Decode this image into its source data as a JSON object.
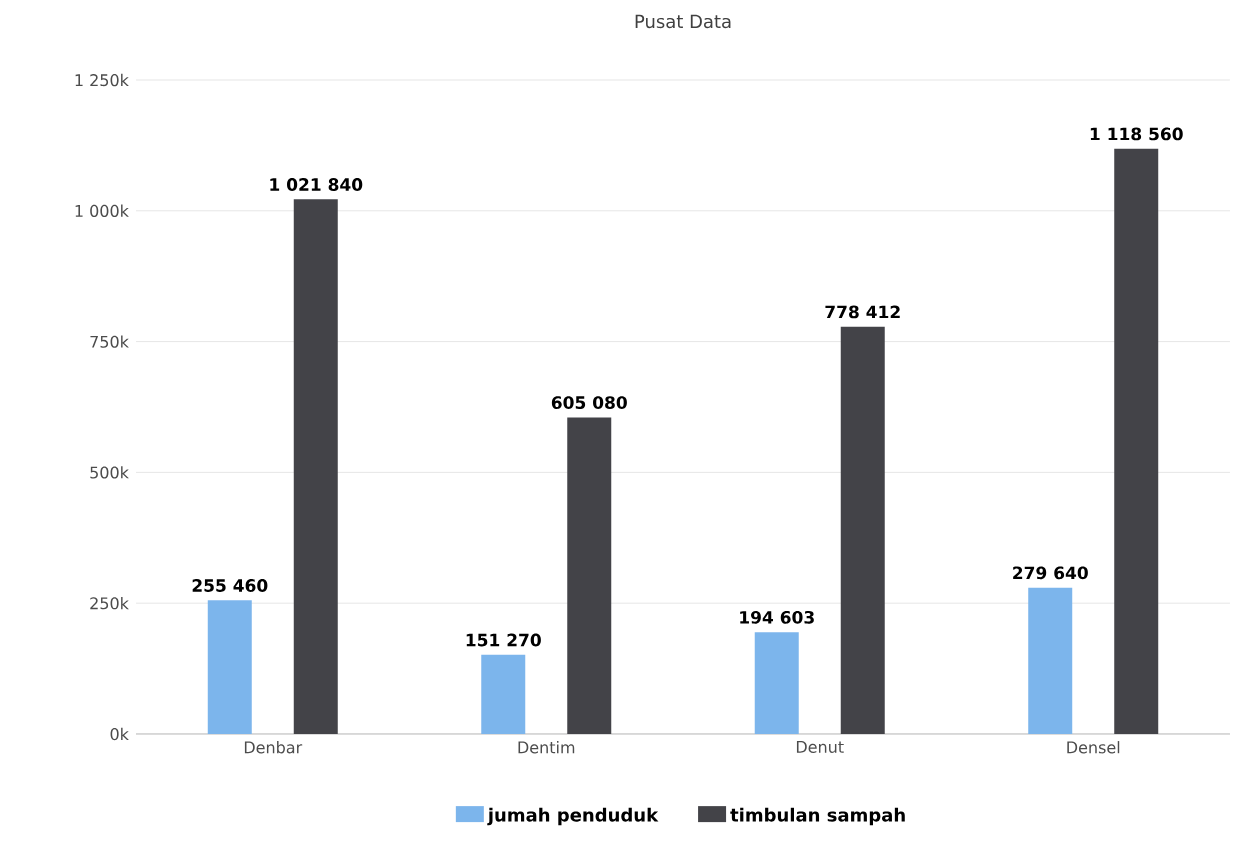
{
  "chart_data": {
    "type": "bar",
    "title": "Pusat Data",
    "categories": [
      "Denbar",
      "Dentim",
      "Denut",
      "Densel"
    ],
    "series": [
      {
        "name": "jumah penduduk",
        "color": "#7cb5ec",
        "values": [
          255460,
          151270,
          194603,
          279640
        ],
        "value_labels": [
          "255 460",
          "151 270",
          "194 603",
          "279 640"
        ]
      },
      {
        "name": "timbulan sampah",
        "color": "#434348",
        "values": [
          1021840,
          605080,
          778412,
          1118560
        ],
        "value_labels": [
          "1 021 840",
          "605 080",
          "778 412",
          "1 118 560"
        ]
      }
    ],
    "ylim": [
      0,
      1250000
    ],
    "yticks": [
      {
        "value": 0,
        "label": "0k"
      },
      {
        "value": 250000,
        "label": "250k"
      },
      {
        "value": 500000,
        "label": "500k"
      },
      {
        "value": 750000,
        "label": "750k"
      },
      {
        "value": 1000000,
        "label": "1 000k"
      },
      {
        "value": 1250000,
        "label": "1 250k"
      }
    ],
    "grid": "y",
    "legend": "bottom"
  }
}
